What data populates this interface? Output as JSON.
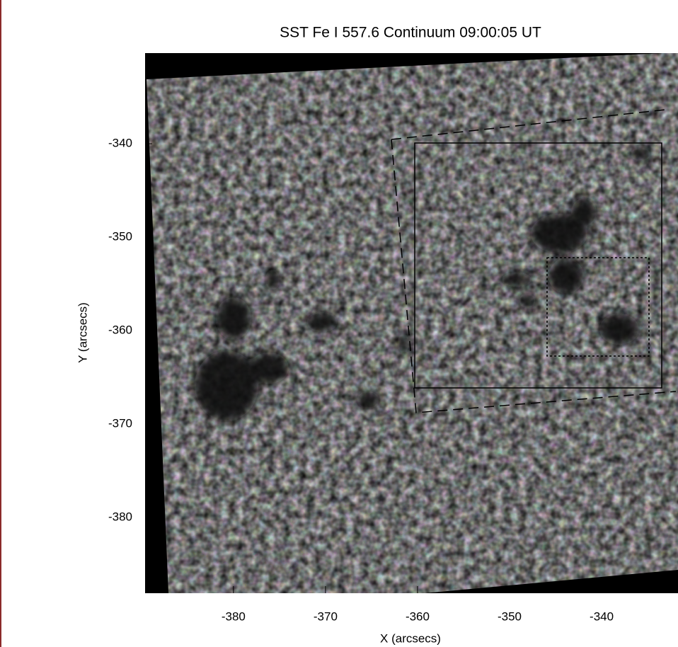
{
  "chart_data": {
    "type": "image",
    "title": "SST Fe I 557.6 Continuum 09:00:05 UT",
    "xlabel": "X (arcsecs)",
    "ylabel": "Y (arcsecs)",
    "xlim": [
      -389.6,
      -331.7
    ],
    "ylim": [
      -388.1,
      -330.3
    ],
    "xticks": [
      -380,
      -370,
      -360,
      -350,
      -340
    ],
    "yticks": [
      -340,
      -350,
      -360,
      -370,
      -380
    ],
    "colormap": "gray"
  }
}
